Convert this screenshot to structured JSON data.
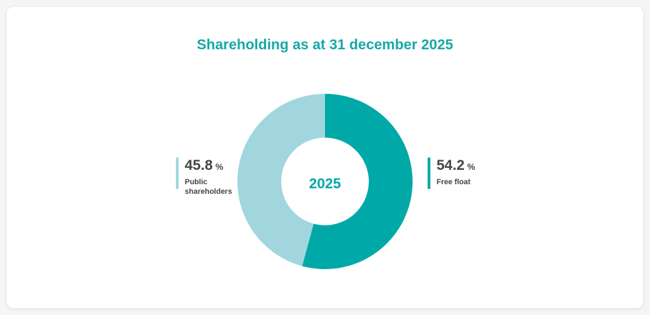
{
  "chart_data": {
    "type": "pie",
    "variant": "donut",
    "title": "Shareholding as at 31 december 2025",
    "center_label": "2025",
    "unit": "%",
    "series": [
      {
        "name": "Free float",
        "value": 54.2,
        "value_label": "54.2",
        "color": "#00a9a8"
      },
      {
        "name": "Public shareholders",
        "value": 45.8,
        "value_label": "45.8",
        "color": "#a1d6df"
      }
    ]
  },
  "colors": {
    "title": "#16a8a5",
    "text": "#454545",
    "background": "#ffffff"
  }
}
